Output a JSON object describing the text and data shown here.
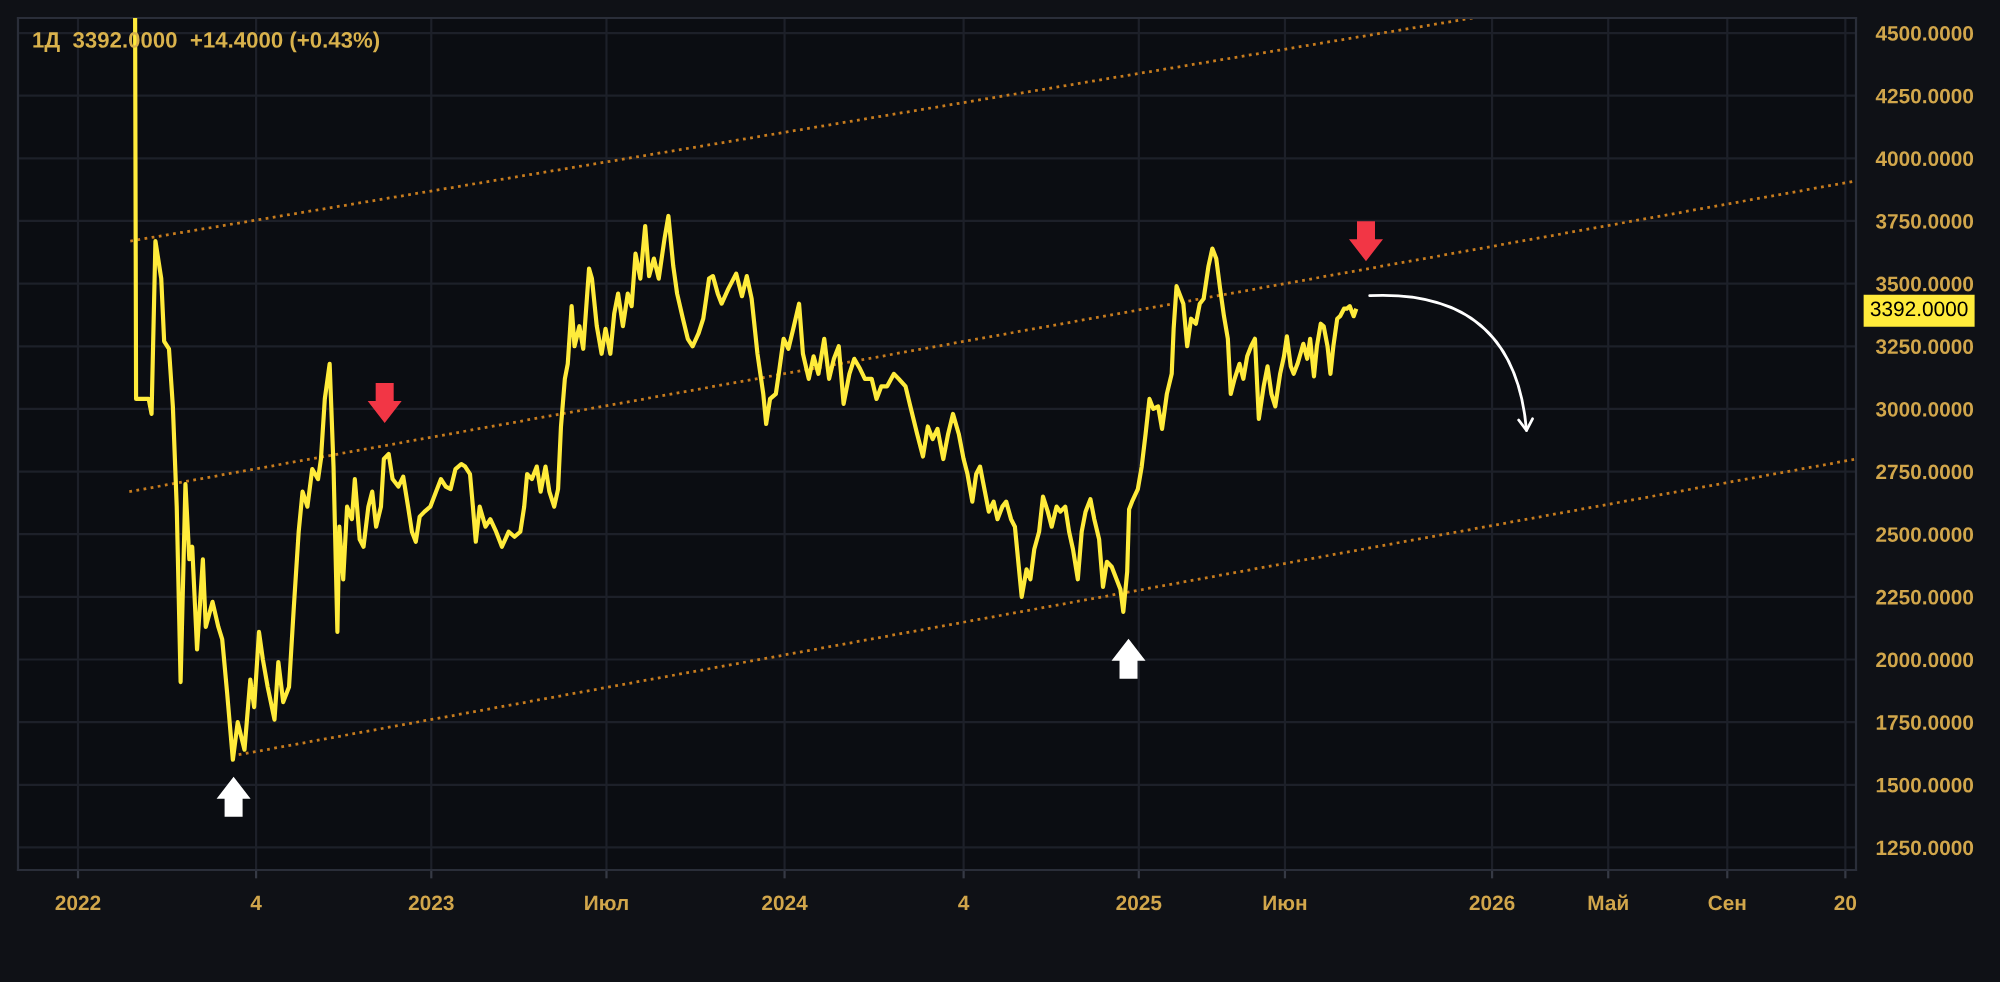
{
  "chart_data": {
    "type": "line",
    "title": "1Д  3392.0000  +14.4000 (+0.43%)",
    "xlim": [
      "2021-10-31",
      "2027-01-12"
    ],
    "ylim": [
      1160,
      4560
    ],
    "xticks": [
      {
        "value": "2022-01-01",
        "label": "2022"
      },
      {
        "value": "2022-07-04",
        "label": "4"
      },
      {
        "value": "2023-01-01",
        "label": "2023"
      },
      {
        "value": "2023-07",
        "label": "Июл"
      },
      {
        "value": "2024-01-01",
        "label": "2024"
      },
      {
        "value": "2024-07-04",
        "label": "4"
      },
      {
        "value": "2025-01-01",
        "label": "2025"
      },
      {
        "value": "2025-06",
        "label": "Июн"
      },
      {
        "value": "2026-01-01",
        "label": "2026"
      },
      {
        "value": "2026-05",
        "label": "Май"
      },
      {
        "value": "2026-09",
        "label": "Сен"
      },
      {
        "value": "2027-01-01",
        "label": "20"
      }
    ],
    "yticks": [
      {
        "value": 1250,
        "label": "1250.0000"
      },
      {
        "value": 1500,
        "label": "1500.0000"
      },
      {
        "value": 1750,
        "label": "1750.0000"
      },
      {
        "value": 2000,
        "label": "2000.0000"
      },
      {
        "value": 2250,
        "label": "2250.0000"
      },
      {
        "value": 2500,
        "label": "2500.0000"
      },
      {
        "value": 2750,
        "label": "2750.0000"
      },
      {
        "value": 3000,
        "label": "3000.0000"
      },
      {
        "value": 3250,
        "label": "3250.0000"
      },
      {
        "value": 3500,
        "label": "3500.0000"
      },
      {
        "value": 3750,
        "label": "3750.0000"
      },
      {
        "value": 4000,
        "label": "4000.0000"
      },
      {
        "value": 4250,
        "label": "4250.0000"
      },
      {
        "value": 4500,
        "label": "4500.0000"
      }
    ],
    "grid": true,
    "series": [
      {
        "color": "#ffeb3b",
        "x": [
          "2022-03-01",
          "2022-03-02",
          "2022-03-15",
          "2022-03-18",
          "2022-03-22",
          "2022-03-28",
          "2022-03-31",
          "2022-04-05",
          "2022-04-09",
          "2022-04-13",
          "2022-04-17",
          "2022-04-22",
          "2022-04-26",
          "2022-04-29",
          "2022-05-04",
          "2022-05-10",
          "2022-05-13",
          "2022-05-20",
          "2022-05-26",
          "2022-05-30",
          "2022-06-04",
          "2022-06-10",
          "2022-06-15",
          "2022-06-22",
          "2022-06-28",
          "2022-07-02",
          "2022-07-07",
          "2022-07-11",
          "2022-07-16",
          "2022-07-23",
          "2022-07-27",
          "2022-08-01",
          "2022-08-07",
          "2022-08-12",
          "2022-08-17",
          "2022-08-21",
          "2022-08-26",
          "2022-08-31",
          "2022-09-06",
          "2022-09-09",
          "2022-09-13",
          "2022-09-18",
          "2022-09-22",
          "2022-09-26",
          "2022-09-28",
          "2022-10-02",
          "2022-10-06",
          "2022-10-11",
          "2022-10-14",
          "2022-10-19",
          "2022-10-23",
          "2022-10-28",
          "2022-11-01",
          "2022-11-05",
          "2022-11-10",
          "2022-11-13",
          "2022-11-18",
          "2022-11-22",
          "2022-11-28",
          "2022-12-03",
          "2022-12-08",
          "2022-12-12",
          "2022-12-16",
          "2022-12-20",
          "2022-12-25",
          "2022-12-31",
          "2023-01-06",
          "2023-01-11",
          "2023-01-16",
          "2023-01-21",
          "2023-01-26",
          "2023-02-01",
          "2023-02-05",
          "2023-02-10",
          "2023-02-13",
          "2023-02-16",
          "2023-02-20",
          "2023-02-26",
          "2023-03-03",
          "2023-03-09",
          "2023-03-15",
          "2023-03-22",
          "2023-03-28",
          "2023-04-03",
          "2023-04-07",
          "2023-04-10",
          "2023-04-15",
          "2023-04-20",
          "2023-04-24",
          "2023-04-29",
          "2023-05-03",
          "2023-05-08",
          "2023-05-12",
          "2023-05-15",
          "2023-05-19",
          "2023-05-22",
          "2023-05-26",
          "2023-05-29",
          "2023-06-03",
          "2023-06-07",
          "2023-06-13",
          "2023-06-16",
          "2023-06-21",
          "2023-06-26",
          "2023-06-30",
          "2023-07-05",
          "2023-07-09",
          "2023-07-13",
          "2023-07-18",
          "2023-07-23",
          "2023-07-27",
          "2023-07-31",
          "2023-08-05",
          "2023-08-10",
          "2023-08-14",
          "2023-08-19",
          "2023-08-24",
          "2023-08-30",
          "2023-09-03",
          "2023-09-08",
          "2023-09-12",
          "2023-09-18",
          "2023-09-23",
          "2023-09-28",
          "2023-10-04",
          "2023-10-09",
          "2023-10-15",
          "2023-10-19",
          "2023-10-24",
          "2023-10-28",
          "2023-11-04",
          "2023-11-12",
          "2023-11-18",
          "2023-11-23",
          "2023-11-28",
          "2023-12-04",
          "2023-12-10",
          "2023-12-13",
          "2023-12-17",
          "2023-12-23",
          "2023-12-26",
          "2023-12-31",
          "2024-01-05",
          "2024-01-10",
          "2024-01-16",
          "2024-01-20",
          "2024-01-26",
          "2024-01-31",
          "2024-02-05",
          "2024-02-11",
          "2024-02-16",
          "2024-02-21",
          "2024-02-26",
          "2024-03-02",
          "2024-03-08",
          "2024-03-13",
          "2024-03-19",
          "2024-03-24",
          "2024-03-31",
          "2024-04-05",
          "2024-04-10",
          "2024-04-16",
          "2024-04-23",
          "2024-04-28",
          "2024-05-05",
          "2024-05-10",
          "2024-05-17",
          "2024-05-23",
          "2024-05-28",
          "2024-06-02",
          "2024-06-07",
          "2024-06-13",
          "2024-06-18",
          "2024-06-23",
          "2024-06-29",
          "2024-07-04",
          "2024-07-08",
          "2024-07-13",
          "2024-07-17",
          "2024-07-21",
          "2024-07-26",
          "2024-07-30",
          "2024-08-04",
          "2024-08-08",
          "2024-08-13",
          "2024-08-17",
          "2024-08-22",
          "2024-08-26",
          "2024-08-30",
          "2024-09-02",
          "2024-09-07",
          "2024-09-11",
          "2024-09-15",
          "2024-09-20",
          "2024-09-24",
          "2024-09-29",
          "2024-10-03",
          "2024-10-08",
          "2024-10-12",
          "2024-10-17",
          "2024-10-21",
          "2024-10-25",
          "2024-10-30",
          "2024-11-03",
          "2024-11-07",
          "2024-11-12",
          "2024-11-16",
          "2024-11-21",
          "2024-11-25",
          "2024-11-29",
          "2024-12-04",
          "2024-12-09",
          "2024-12-13",
          "2024-12-16",
          "2024-12-20",
          "2024-12-22",
          "2024-12-25",
          "2024-12-31",
          "2025-01-04",
          "2025-01-08",
          "2025-01-12",
          "2025-01-16",
          "2025-01-21",
          "2025-01-25",
          "2025-01-30",
          "2025-02-04",
          "2025-02-06",
          "2025-02-09",
          "2025-02-13",
          "2025-02-16",
          "2025-02-20",
          "2025-02-24",
          "2025-03-01",
          "2025-03-05",
          "2025-03-09",
          "2025-03-14",
          "2025-03-18",
          "2025-03-22",
          "2025-03-26",
          "2025-03-30",
          "2025-04-03",
          "2025-04-06",
          "2025-04-10",
          "2025-04-15",
          "2025-04-19",
          "2025-04-23",
          "2025-04-27",
          "2025-05-01",
          "2025-05-05",
          "2025-05-10",
          "2025-05-14",
          "2025-05-18",
          "2025-05-22",
          "2025-05-27",
          "2025-05-31",
          "2025-06-03",
          "2025-06-07",
          "2025-06-10",
          "2025-06-14",
          "2025-06-17",
          "2025-06-20",
          "2025-06-24",
          "2025-06-27",
          "2025-07-01",
          "2025-07-04",
          "2025-07-08",
          "2025-07-11",
          "2025-07-15",
          "2025-07-18",
          "2025-07-21",
          "2025-07-25",
          "2025-07-28",
          "2025-08-01",
          "2025-08-04",
          "2025-08-07",
          "2025-08-11",
          "2025-08-13"
        ],
        "values": [
          4560,
          3040,
          3040,
          2980,
          3670,
          3520,
          3270,
          3240,
          3010,
          2610,
          1910,
          2700,
          2400,
          2450,
          2040,
          2400,
          2130,
          2230,
          2130,
          2080,
          1870,
          1600,
          1750,
          1640,
          1920,
          1810,
          2110,
          2000,
          1890,
          1760,
          1990,
          1830,
          1890,
          2210,
          2510,
          2670,
          2610,
          2760,
          2720,
          2800,
          3040,
          3180,
          2770,
          2110,
          2530,
          2320,
          2610,
          2560,
          2720,
          2480,
          2450,
          2610,
          2670,
          2530,
          2610,
          2800,
          2820,
          2720,
          2690,
          2730,
          2610,
          2510,
          2470,
          2570,
          2590,
          2610,
          2670,
          2720,
          2690,
          2680,
          2760,
          2780,
          2770,
          2740,
          2610,
          2470,
          2610,
          2530,
          2560,
          2510,
          2450,
          2510,
          2490,
          2510,
          2610,
          2740,
          2720,
          2770,
          2670,
          2770,
          2670,
          2610,
          2680,
          2930,
          3120,
          3180,
          3410,
          3250,
          3330,
          3240,
          3560,
          3520,
          3330,
          3220,
          3320,
          3220,
          3380,
          3460,
          3330,
          3460,
          3410,
          3620,
          3520,
          3730,
          3530,
          3600,
          3520,
          3680,
          3770,
          3570,
          3460,
          3360,
          3280,
          3250,
          3300,
          3360,
          3520,
          3530,
          3460,
          3420,
          3480,
          3540,
          3450,
          3530,
          3440,
          3220,
          3060,
          2940,
          3040,
          3060,
          3140,
          3280,
          3240,
          3320,
          3420,
          3220,
          3120,
          3210,
          3140,
          3280,
          3120,
          3200,
          3250,
          3020,
          3140,
          3200,
          3160,
          3120,
          3120,
          3040,
          3090,
          3090,
          3140,
          3120,
          3090,
          3010,
          2900,
          2810,
          2930,
          2880,
          2920,
          2800,
          2900,
          2980,
          2900,
          2800,
          2740,
          2630,
          2740,
          2770,
          2670,
          2590,
          2630,
          2560,
          2610,
          2630,
          2560,
          2530,
          2370,
          2250,
          2360,
          2320,
          2440,
          2510,
          2650,
          2590,
          2530,
          2610,
          2590,
          2610,
          2510,
          2440,
          2320,
          2510,
          2590,
          2640,
          2560,
          2480,
          2290,
          2390,
          2370,
          2320,
          2280,
          2190,
          2350,
          2600,
          2630,
          2680,
          2770,
          2900,
          3040,
          3000,
          3010,
          2920,
          3060,
          3140,
          3320,
          3490,
          3450,
          3420,
          3250,
          3360,
          3340,
          3420,
          3440,
          3570,
          3640,
          3600,
          3480,
          3370,
          3280,
          3060,
          3120,
          3180,
          3120,
          3210,
          3250,
          3280,
          2960,
          3090,
          3170,
          3060,
          3010,
          3140,
          3210,
          3290,
          3170,
          3140,
          3180,
          3220,
          3260,
          3200,
          3280,
          3130,
          3250,
          3340,
          3330,
          3250,
          3140,
          3250,
          3360,
          3370,
          3400,
          3400,
          3410,
          3370,
          3392
        ]
      },
      {
        "color": "#c77c1e",
        "line_style": "dotted",
        "x": [
          "2022-02-24",
          "2025-12-12"
        ],
        "values": [
          3670,
          4560
        ]
      },
      {
        "color": "#c77c1e",
        "line_style": "dotted",
        "x": [
          "2022-02-23",
          "2027-01-12"
        ],
        "values": [
          2670,
          3910
        ]
      },
      {
        "color": "#c77c1e",
        "line_style": "dotted",
        "x": [
          "2022-06-16",
          "2027-01-12"
        ],
        "values": [
          1620,
          2800
        ]
      }
    ],
    "annotations": [
      "3392.0000"
    ]
  }
}
